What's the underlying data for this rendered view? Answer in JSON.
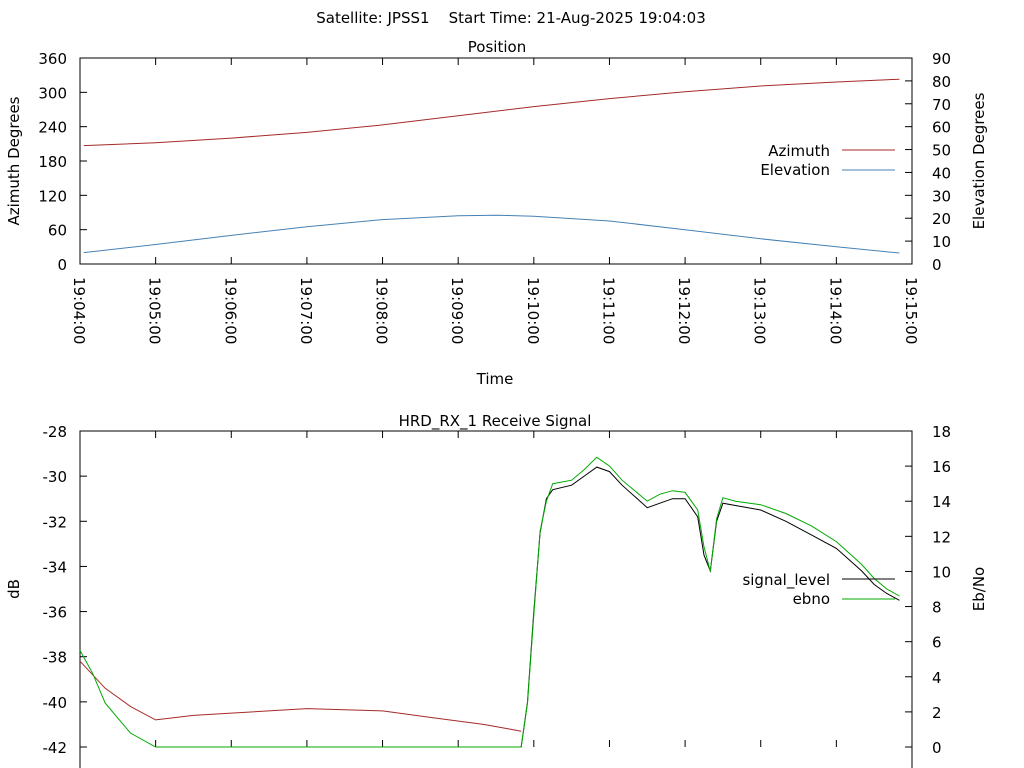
{
  "header": {
    "title": "Satellite: JPSS1    Start Time: 21-Aug-2025 19:04:03"
  },
  "chart_data": [
    {
      "type": "line",
      "title": "Position",
      "xlabel": "Time",
      "ylabel": "Azimuth Degrees",
      "y2label": "Elevation Degrees",
      "xlim": [
        "19:04:00",
        "19:15:00"
      ],
      "ylim": [
        0,
        360
      ],
      "y2lim": [
        0,
        90
      ],
      "yticks": [
        "0",
        "60",
        "120",
        "180",
        "240",
        "300",
        "360"
      ],
      "y2ticks": [
        "0",
        "10",
        "20",
        "30",
        "40",
        "50",
        "60",
        "70",
        "80",
        "90"
      ],
      "xticks": [
        "19:04:00",
        "19:05:00",
        "19:06:00",
        "19:07:00",
        "19:08:00",
        "19:09:00",
        "19:10:00",
        "19:11:00",
        "19:12:00",
        "19:13:00",
        "19:14:00",
        "19:15:00"
      ],
      "grid": false,
      "legend_position": "right",
      "series": [
        {
          "name": "Azimuth",
          "axis": "y1",
          "color": "#a52a2a",
          "x": [
            "19:04:03",
            "19:05:00",
            "19:06:00",
            "19:07:00",
            "19:08:00",
            "19:09:00",
            "19:10:00",
            "19:11:00",
            "19:12:00",
            "19:13:00",
            "19:14:00",
            "19:14:50"
          ],
          "values": [
            207,
            212,
            220,
            230,
            243,
            259,
            275,
            289,
            301,
            311,
            318,
            323
          ]
        },
        {
          "name": "Elevation",
          "axis": "y2",
          "color": "#4682b4",
          "x": [
            "19:04:03",
            "19:05:00",
            "19:06:00",
            "19:07:00",
            "19:08:00",
            "19:09:00",
            "19:09:30",
            "19:10:00",
            "19:11:00",
            "19:12:00",
            "19:13:00",
            "19:14:00",
            "19:14:50"
          ],
          "values": [
            5.0,
            8.5,
            12.5,
            16.3,
            19.4,
            21.1,
            21.3,
            20.9,
            18.8,
            15.0,
            11.0,
            7.5,
            4.8
          ]
        }
      ]
    },
    {
      "type": "line",
      "title": "HRD_RX_1 Receive Signal",
      "ylabel": "dB",
      "y2label": "Eb/No",
      "ylim": [
        -42,
        -28
      ],
      "y2lim": [
        0,
        18
      ],
      "yticks": [
        "-42",
        "-40",
        "-38",
        "-36",
        "-34",
        "-32",
        "-30",
        "-28"
      ],
      "y2ticks": [
        "0",
        "2",
        "4",
        "6",
        "8",
        "10",
        "12",
        "14",
        "16",
        "18"
      ],
      "grid": false,
      "legend_position": "right",
      "series": [
        {
          "name": "signal_level",
          "axis": "y1",
          "color": "#a52a2a",
          "x": [
            "19:04:00",
            "19:04:20",
            "19:04:40",
            "19:05:00",
            "19:05:30",
            "19:06:00",
            "19:07:00",
            "19:08:00",
            "19:08:40",
            "19:09:20",
            "19:09:40",
            "19:09:50"
          ],
          "values": [
            -38.2,
            -39.4,
            -40.2,
            -40.8,
            -40.6,
            -40.5,
            -40.3,
            -40.4,
            -40.7,
            -41.0,
            -41.2,
            -41.3
          ]
        },
        {
          "name": "signal_level",
          "axis": "y1",
          "color": "#000000",
          "x": [
            "19:09:50",
            "19:09:55",
            "19:10:00",
            "19:10:05",
            "19:10:10",
            "19:10:15",
            "19:10:30",
            "19:10:40",
            "19:10:50",
            "19:11:00",
            "19:11:10",
            "19:11:30",
            "19:11:40",
            "19:11:50",
            "19:12:00",
            "19:12:10",
            "19:12:15",
            "19:12:20",
            "19:12:25",
            "19:12:30",
            "19:12:40",
            "19:13:00",
            "19:13:20",
            "19:13:40",
            "19:14:00",
            "19:14:20",
            "19:14:30",
            "19:14:40",
            "19:14:50"
          ],
          "values": [
            -42.0,
            -40.0,
            -36.0,
            -32.5,
            -31.0,
            -30.6,
            -30.4,
            -30.0,
            -29.6,
            -29.8,
            -30.4,
            -31.4,
            -31.2,
            -31.0,
            -31.0,
            -31.8,
            -33.5,
            -34.2,
            -32.0,
            -31.2,
            -31.3,
            -31.5,
            -32.0,
            -32.6,
            -33.2,
            -34.2,
            -34.8,
            -35.2,
            -35.5
          ]
        },
        {
          "name": "ebno",
          "axis": "y2",
          "color": "#00aa00",
          "x": [
            "19:04:00",
            "19:04:10",
            "19:04:20",
            "19:04:40",
            "19:05:00",
            "19:09:50",
            "19:09:55",
            "19:10:00",
            "19:10:05",
            "19:10:10",
            "19:10:15",
            "19:10:30",
            "19:10:40",
            "19:10:50",
            "19:11:00",
            "19:11:10",
            "19:11:30",
            "19:11:40",
            "19:11:50",
            "19:12:00",
            "19:12:10",
            "19:12:15",
            "19:12:20",
            "19:12:25",
            "19:12:30",
            "19:12:40",
            "19:13:00",
            "19:13:20",
            "19:13:40",
            "19:14:00",
            "19:14:20",
            "19:14:30",
            "19:14:40",
            "19:14:50"
          ],
          "values": [
            5.5,
            4.2,
            2.5,
            0.8,
            0.0,
            0.0,
            2.5,
            7.5,
            12.3,
            14.0,
            15.0,
            15.2,
            15.8,
            16.5,
            16.0,
            15.2,
            14.0,
            14.4,
            14.6,
            14.5,
            13.5,
            11.4,
            10.0,
            13.0,
            14.2,
            14.0,
            13.8,
            13.3,
            12.6,
            11.7,
            10.4,
            9.6,
            9.0,
            8.6
          ]
        }
      ]
    }
  ]
}
